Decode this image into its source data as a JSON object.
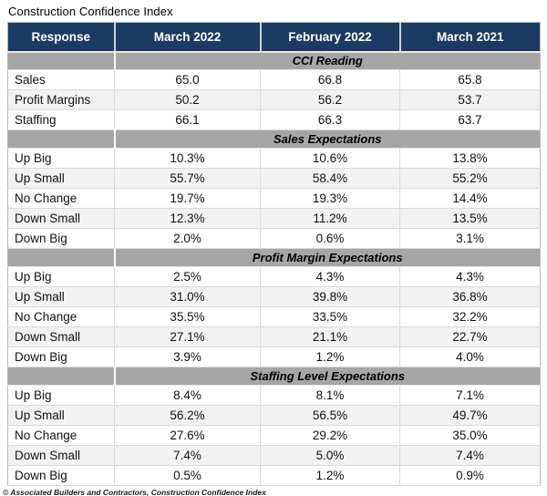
{
  "title": "Construction Confidence Index",
  "footer": "© Associated Builders and Contractors, Construction Confidence Index",
  "colors": {
    "header_bg": "#1d3a63",
    "band_bg": "#a6a6a6",
    "stripe_bg": "#f2f2f2"
  },
  "chart_data": {
    "type": "table",
    "title": "Construction Confidence Index",
    "columns": [
      "Response",
      "March 2022",
      "February 2022",
      "March 2021"
    ],
    "sections": [
      {
        "header": "CCI Reading",
        "rows": [
          [
            "Sales",
            "65.0",
            "66.8",
            "65.8"
          ],
          [
            "Profit Margins",
            "50.2",
            "56.2",
            "53.7"
          ],
          [
            "Staffing",
            "66.1",
            "66.3",
            "63.7"
          ]
        ]
      },
      {
        "header": "Sales Expectations",
        "rows": [
          [
            "Up Big",
            "10.3%",
            "10.6%",
            "13.8%"
          ],
          [
            "Up Small",
            "55.7%",
            "58.4%",
            "55.2%"
          ],
          [
            "No Change",
            "19.7%",
            "19.3%",
            "14.4%"
          ],
          [
            "Down Small",
            "12.3%",
            "11.2%",
            "13.5%"
          ],
          [
            "Down Big",
            "2.0%",
            "0.6%",
            "3.1%"
          ]
        ]
      },
      {
        "header": "Profit Margin Expectations",
        "rows": [
          [
            "Up Big",
            "2.5%",
            "4.3%",
            "4.3%"
          ],
          [
            "Up Small",
            "31.0%",
            "39.8%",
            "36.8%"
          ],
          [
            "No Change",
            "35.5%",
            "33.5%",
            "32.2%"
          ],
          [
            "Down Small",
            "27.1%",
            "21.1%",
            "22.7%"
          ],
          [
            "Down Big",
            "3.9%",
            "1.2%",
            "4.0%"
          ]
        ]
      },
      {
        "header": "Staffing Level Expectations",
        "rows": [
          [
            "Up Big",
            "8.4%",
            "8.1%",
            "7.1%"
          ],
          [
            "Up Small",
            "56.2%",
            "56.5%",
            "49.7%"
          ],
          [
            "No Change",
            "27.6%",
            "29.2%",
            "35.0%"
          ],
          [
            "Down Small",
            "7.4%",
            "5.0%",
            "7.4%"
          ],
          [
            "Down Big",
            "0.5%",
            "1.2%",
            "0.9%"
          ]
        ]
      }
    ]
  }
}
